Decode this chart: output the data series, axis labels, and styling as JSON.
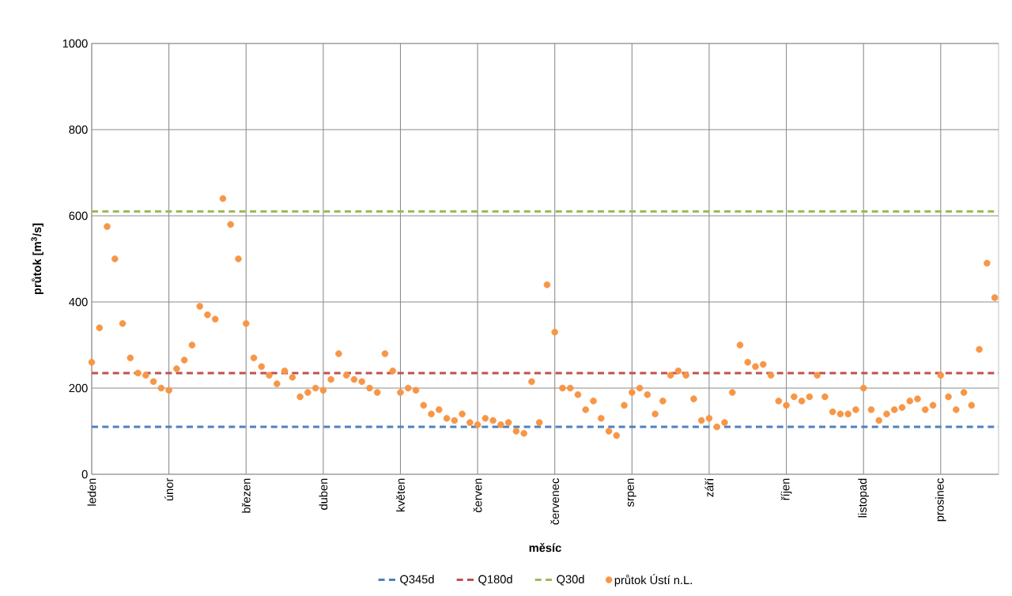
{
  "chart_data": {
    "type": "scatter",
    "xlabel": "měsíc",
    "ylabel": "průtok [m$^{3}$/s]",
    "categories": [
      "leden",
      null,
      null,
      null,
      null,
      null,
      null,
      null,
      null,
      null,
      "únor",
      null,
      null,
      null,
      null,
      null,
      null,
      null,
      null,
      null,
      "březen",
      null,
      null,
      null,
      null,
      null,
      null,
      null,
      null,
      null,
      "duben",
      null,
      null,
      null,
      null,
      null,
      null,
      null,
      null,
      null,
      "květen",
      null,
      null,
      null,
      null,
      null,
      null,
      null,
      null,
      null,
      "červen",
      null,
      null,
      null,
      null,
      null,
      null,
      null,
      null,
      null,
      "červenec",
      null,
      null,
      null,
      null,
      null,
      null,
      null,
      null,
      null,
      "srpen",
      null,
      null,
      null,
      null,
      null,
      null,
      null,
      null,
      null,
      "září",
      null,
      null,
      null,
      null,
      null,
      null,
      null,
      null,
      null,
      "říjen",
      null,
      null,
      null,
      null,
      null,
      null,
      null,
      null,
      null,
      "listopad",
      null,
      null,
      null,
      null,
      null,
      null,
      null,
      null,
      null,
      "prosinec",
      null,
      null,
      null,
      null,
      null,
      null,
      null
    ],
    "ylim": [
      0,
      1000
    ],
    "yticks": [
      0,
      200,
      400,
      600,
      800,
      1000
    ],
    "grid": true,
    "legend": "bottom",
    "marker": "circle",
    "ref_lines": [
      {
        "axis": "y",
        "value": 110,
        "label": "Q345d",
        "color": "#4f81bd",
        "line_style": "dashed"
      },
      {
        "axis": "y",
        "value": 235,
        "label": "Q180d",
        "color": "#c0504d",
        "line_style": "dashed"
      },
      {
        "axis": "y",
        "value": 610,
        "label": "Q30d",
        "color": "#9bbb59",
        "line_style": "dashed"
      }
    ],
    "series": [
      {
        "name": "průtok Ústí n.L.",
        "color": "#f79646",
        "values": [
          260,
          340,
          575,
          500,
          350,
          270,
          235,
          230,
          215,
          200,
          195,
          245,
          265,
          300,
          390,
          370,
          360,
          640,
          580,
          500,
          350,
          270,
          250,
          230,
          210,
          240,
          225,
          180,
          190,
          200,
          195,
          220,
          280,
          230,
          220,
          215,
          200,
          190,
          280,
          240,
          190,
          200,
          195,
          160,
          140,
          150,
          130,
          125,
          140,
          120,
          115,
          130,
          125,
          115,
          120,
          100,
          95,
          215,
          120,
          440,
          330,
          200,
          200,
          185,
          150,
          170,
          130,
          100,
          90,
          160,
          190,
          200,
          185,
          140,
          170,
          230,
          240,
          230,
          175,
          125,
          130,
          110,
          120,
          190,
          300,
          260,
          250,
          255,
          230,
          170,
          160,
          180,
          170,
          180,
          230,
          180,
          145,
          140,
          140,
          150,
          200,
          150,
          125,
          140,
          150,
          155,
          170,
          175,
          150,
          160,
          230,
          180,
          150,
          190,
          160,
          290,
          490,
          410
        ]
      }
    ]
  }
}
